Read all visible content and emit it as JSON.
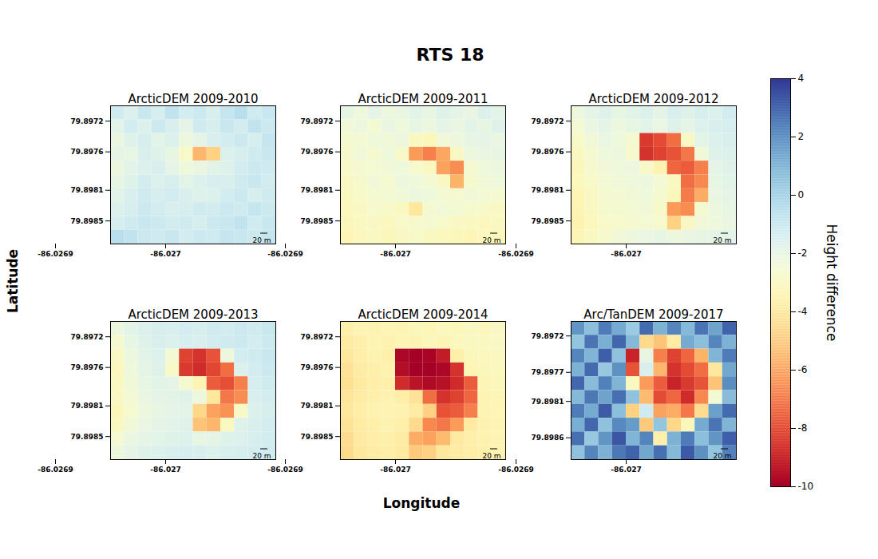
{
  "chart_data": {
    "type": "heatmap",
    "title": "RTS 18",
    "x_label": "Longitude",
    "y_label": "Latitude",
    "color": "RdYlBu",
    "colorbar": {
      "range": [
        -10,
        4
      ],
      "ticks": [
        4,
        2,
        0,
        -2,
        -4,
        -6,
        -8,
        -10
      ],
      "label": "Height difference"
    },
    "panels": [
      {
        "title": "ArcticDEM 2009-2010",
        "scale_bar": "20 m",
        "xlim": [
          -86.02695,
          -86.0271
        ],
        "xticks": [
          -86.0269,
          -86.027
        ],
        "ylim": [
          79.897,
          79.8988
        ],
        "yticks": [
          79.8972,
          79.8976,
          79.8981,
          79.8985
        ],
        "cells": [
          [
            -1.2,
            -1.6,
            -1.0,
            -1.4,
            -0.8,
            -1.3,
            -1.1,
            -1.5,
            -0.9,
            -0.6,
            -1.2,
            -1.0
          ],
          [
            -1.8,
            -1.3,
            -1.6,
            -1.1,
            -1.5,
            -1.9,
            -1.2,
            -1.4,
            -1.0,
            -1.3,
            -0.8,
            -1.1
          ],
          [
            -2.1,
            -1.7,
            -1.4,
            -1.8,
            -1.6,
            -2.2,
            -1.9,
            -1.5,
            -1.3,
            -1.1,
            -1.4,
            -0.9
          ],
          [
            -1.9,
            -2.0,
            -1.5,
            -1.7,
            -2.0,
            -2.8,
            -5.5,
            -4.8,
            -1.6,
            -1.4,
            -1.2,
            -1.0
          ],
          [
            -2.2,
            -1.8,
            -1.6,
            -1.5,
            -1.9,
            -2.3,
            -2.1,
            -1.8,
            -1.7,
            -1.3,
            -1.1,
            -1.2
          ],
          [
            -2.0,
            -1.7,
            -1.3,
            -1.6,
            -1.4,
            -1.8,
            -1.6,
            -1.4,
            -1.5,
            -1.2,
            -1.0,
            -1.3
          ],
          [
            -1.8,
            -1.5,
            -1.2,
            -1.4,
            -1.3,
            -1.5,
            -1.7,
            -1.6,
            -1.3,
            -1.1,
            -1.4,
            -1.2
          ],
          [
            -1.6,
            -1.4,
            -1.1,
            -1.3,
            -1.5,
            -1.4,
            -1.2,
            -1.3,
            -1.1,
            -1.2,
            -0.9,
            -1.1
          ],
          [
            -1.4,
            -1.2,
            -1.0,
            -1.1,
            -1.3,
            -1.2,
            -1.4,
            -1.1,
            -1.0,
            -0.8,
            -1.2,
            -1.0
          ],
          [
            -0.6,
            -0.8,
            -1.1,
            -1.2,
            -1.0,
            -1.3,
            -1.1,
            -1.2,
            -0.9,
            -1.0,
            -1.1,
            -0.9
          ]
        ]
      },
      {
        "title": "ArcticDEM 2009-2011",
        "scale_bar": "20 m",
        "xlim": [
          -86.02695,
          -86.0271
        ],
        "xticks": [
          -86.0269,
          -86.027
        ],
        "ylim": [
          79.897,
          79.8988
        ],
        "yticks": [
          79.8972,
          79.8976,
          79.8981,
          79.8985
        ],
        "cells": [
          [
            -2.0,
            -2.3,
            -1.9,
            -2.2,
            -2.1,
            -1.8,
            -2.0,
            -1.7,
            -1.9,
            -2.1,
            -1.6,
            -1.8
          ],
          [
            -2.4,
            -2.2,
            -2.5,
            -2.1,
            -2.3,
            -2.0,
            -2.2,
            -1.9,
            -2.1,
            -1.8,
            -2.0,
            -1.7
          ],
          [
            -2.6,
            -2.5,
            -2.3,
            -2.4,
            -2.2,
            -3.0,
            -3.2,
            -2.4,
            -2.2,
            -2.0,
            -1.9,
            -2.1
          ],
          [
            -2.7,
            -2.4,
            -2.6,
            -2.3,
            -2.8,
            -6.2,
            -6.8,
            -5.9,
            -2.9,
            -2.2,
            -2.1,
            -2.0
          ],
          [
            -2.8,
            -2.6,
            -2.5,
            -2.4,
            -2.3,
            -2.7,
            -3.0,
            -6.0,
            -6.5,
            -2.6,
            -2.3,
            -2.2
          ],
          [
            -2.9,
            -2.7,
            -2.4,
            -2.6,
            -2.2,
            -2.3,
            -2.5,
            -2.9,
            -5.6,
            -2.7,
            -2.4,
            -2.3
          ],
          [
            -3.0,
            -2.8,
            -2.6,
            -2.5,
            -2.4,
            -2.2,
            -2.3,
            -2.5,
            -2.6,
            -2.4,
            -2.5,
            -2.6
          ],
          [
            -3.1,
            -2.9,
            -2.7,
            -2.8,
            -3.0,
            -4.0,
            -2.6,
            -2.4,
            -2.5,
            -2.7,
            -2.8,
            -2.9
          ],
          [
            -3.2,
            -3.0,
            -2.9,
            -3.1,
            -2.8,
            -2.7,
            -2.6,
            -2.8,
            -2.9,
            -3.0,
            -3.1,
            -3.0
          ],
          [
            -3.3,
            -3.1,
            -3.0,
            -3.2,
            -2.9,
            -2.8,
            -3.0,
            -3.1,
            -3.2,
            -3.3,
            -3.1,
            -3.2
          ]
        ]
      },
      {
        "title": "ArcticDEM 2009-2012",
        "scale_bar": "20 m",
        "xlim": [
          -86.02695,
          -86.0271
        ],
        "xticks": [
          -86.0269,
          -86.027
        ],
        "ylim": [
          79.897,
          79.8988
        ],
        "yticks": [
          79.8972,
          79.8976,
          79.8981,
          79.8985
        ],
        "cells": [
          [
            -2.2,
            -1.9,
            -1.7,
            -2.0,
            -1.8,
            -1.6,
            -1.9,
            -1.5,
            -1.7,
            -1.4,
            -1.6,
            -1.3
          ],
          [
            -2.5,
            -2.1,
            -1.9,
            -2.2,
            -2.0,
            -1.8,
            -2.1,
            -1.7,
            -1.9,
            -1.6,
            -1.5,
            -1.4
          ],
          [
            -2.8,
            -2.4,
            -2.1,
            -2.3,
            -2.6,
            -8.4,
            -8.0,
            -7.2,
            -2.9,
            -1.8,
            -1.6,
            -1.5
          ],
          [
            -3.0,
            -2.6,
            -2.3,
            -2.2,
            -2.7,
            -8.6,
            -8.2,
            -7.8,
            -7.0,
            -2.4,
            -1.7,
            -1.6
          ],
          [
            -3.2,
            -2.7,
            -2.4,
            -2.3,
            -2.2,
            -2.8,
            -3.5,
            -7.4,
            -7.6,
            -6.8,
            -1.9,
            -1.7
          ],
          [
            -3.1,
            -2.8,
            -2.5,
            -2.4,
            -2.3,
            -2.2,
            -2.5,
            -3.0,
            -7.2,
            -6.6,
            -2.0,
            -1.8
          ],
          [
            -3.3,
            -2.9,
            -2.6,
            -2.5,
            -2.4,
            -2.3,
            -2.6,
            -3.2,
            -6.9,
            -5.8,
            -2.1,
            -1.9
          ],
          [
            -3.4,
            -3.0,
            -2.7,
            -2.6,
            -2.5,
            -2.4,
            -2.8,
            -6.2,
            -6.5,
            -2.6,
            -2.2,
            -2.0
          ],
          [
            -3.5,
            -3.1,
            -2.8,
            -2.7,
            -2.6,
            -2.5,
            -2.7,
            -4.8,
            -2.9,
            -2.4,
            -2.3,
            -2.1
          ],
          [
            -3.3,
            -3.0,
            -2.7,
            -2.4,
            -2.2,
            -2.1,
            -2.0,
            -2.2,
            -2.1,
            -2.0,
            -1.9,
            -1.8
          ]
        ]
      },
      {
        "title": "ArcticDEM 2009-2013",
        "scale_bar": "20 m",
        "xlim": [
          -86.02695,
          -86.0271
        ],
        "xticks": [
          -86.0269,
          -86.027
        ],
        "ylim": [
          79.897,
          79.8988
        ],
        "yticks": [
          79.8972,
          79.8976,
          79.8981,
          79.8985
        ],
        "cells": [
          [
            -2.2,
            -1.8,
            -1.6,
            -1.4,
            -1.5,
            -1.3,
            -1.4,
            -1.2,
            -1.3,
            -1.1,
            -1.2,
            -1.0
          ],
          [
            -2.6,
            -2.0,
            -1.7,
            -1.5,
            -1.6,
            -1.4,
            -1.5,
            -1.3,
            -1.2,
            -1.1,
            -1.3,
            -1.1
          ],
          [
            -2.9,
            -2.2,
            -1.8,
            -1.6,
            -2.5,
            -8.2,
            -8.6,
            -7.8,
            -2.2,
            -1.3,
            -1.2,
            -1.0
          ],
          [
            -3.1,
            -2.3,
            -1.9,
            -1.7,
            -2.8,
            -8.4,
            -8.8,
            -8.1,
            -7.2,
            -1.6,
            -1.3,
            -1.1
          ],
          [
            -3.0,
            -2.4,
            -2.0,
            -1.8,
            -1.9,
            -2.6,
            -3.4,
            -7.6,
            -7.9,
            -6.8,
            -1.4,
            -1.2
          ],
          [
            -2.9,
            -2.5,
            -2.1,
            -1.9,
            -1.8,
            -1.7,
            -2.2,
            -4.0,
            -7.0,
            -6.5,
            -1.5,
            -1.3
          ],
          [
            -3.2,
            -2.6,
            -2.2,
            -2.0,
            -1.9,
            -1.8,
            -4.6,
            -6.0,
            -6.4,
            -2.8,
            -1.6,
            -1.4
          ],
          [
            -3.0,
            -2.4,
            -2.1,
            -1.9,
            -1.8,
            -1.7,
            -5.2,
            -5.5,
            -3.0,
            -1.7,
            -1.5,
            -1.3
          ],
          [
            -2.6,
            -2.1,
            -1.9,
            -1.8,
            -1.7,
            -1.6,
            -2.0,
            -1.9,
            -1.7,
            -1.6,
            -1.4,
            -1.3
          ],
          [
            -2.2,
            -1.9,
            -1.7,
            -1.6,
            -1.5,
            -1.4,
            -1.5,
            -1.6,
            -1.5,
            -1.4,
            -1.3,
            -1.2
          ]
        ]
      },
      {
        "title": "ArcticDEM 2009-2014",
        "scale_bar": "20 m",
        "xlim": [
          -86.02695,
          -86.0271
        ],
        "xticks": [
          -86.0269,
          -86.027
        ],
        "ylim": [
          79.897,
          79.8988
        ],
        "yticks": [
          79.8972,
          79.8976,
          79.8981,
          79.8985
        ],
        "cells": [
          [
            -3.6,
            -3.4,
            -3.5,
            -3.3,
            -3.4,
            -3.2,
            -3.3,
            -3.1,
            -3.2,
            -3.0,
            -3.1,
            -2.9
          ],
          [
            -3.8,
            -3.6,
            -3.4,
            -3.5,
            -3.3,
            -3.4,
            -3.2,
            -3.3,
            -3.1,
            -3.0,
            -3.0,
            -2.9
          ],
          [
            -4.0,
            -3.7,
            -3.5,
            -3.6,
            -9.8,
            -10.0,
            -9.9,
            -9.2,
            -3.6,
            -3.2,
            -3.1,
            -3.0
          ],
          [
            -4.2,
            -3.8,
            -3.6,
            -3.5,
            -9.6,
            -10.0,
            -10.0,
            -9.8,
            -8.6,
            -3.3,
            -3.2,
            -3.1
          ],
          [
            -4.3,
            -3.9,
            -3.7,
            -3.6,
            -8.8,
            -9.4,
            -9.7,
            -9.5,
            -8.8,
            -7.6,
            -3.3,
            -3.2
          ],
          [
            -4.1,
            -3.8,
            -3.6,
            -3.5,
            -3.7,
            -4.2,
            -7.2,
            -8.6,
            -8.2,
            -7.4,
            -3.4,
            -3.3
          ],
          [
            -4.0,
            -3.7,
            -3.5,
            -3.4,
            -3.5,
            -3.8,
            -4.8,
            -7.8,
            -7.6,
            -6.8,
            -3.4,
            -3.3
          ],
          [
            -4.2,
            -3.8,
            -3.6,
            -3.5,
            -3.6,
            -4.5,
            -6.6,
            -7.0,
            -6.2,
            -3.9,
            -3.5,
            -3.4
          ],
          [
            -4.4,
            -3.9,
            -3.7,
            -3.6,
            -3.8,
            -5.8,
            -6.0,
            -5.4,
            -3.9,
            -3.6,
            -3.5,
            -3.4
          ],
          [
            -4.5,
            -4.0,
            -3.8,
            -3.7,
            -3.9,
            -5.0,
            -4.8,
            -4.0,
            -3.8,
            -3.7,
            -3.6,
            -3.5
          ]
        ]
      },
      {
        "title": "Arc/TanDEM 2009-2017",
        "scale_bar": "20 m",
        "xlim": [
          -86.02695,
          -86.0271
        ],
        "xticks": [
          -86.0269,
          -86.027
        ],
        "ylim": [
          79.897,
          79.8989
        ],
        "yticks": [
          79.8972,
          79.8977,
          79.8981,
          79.8986
        ],
        "cells": [
          [
            1.8,
            0.6,
            2.4,
            1.2,
            0.2,
            2.8,
            1.0,
            2.2,
            0.8,
            2.6,
            1.4,
            3.0
          ],
          [
            0.4,
            2.6,
            1.1,
            2.9,
            0.8,
            -4.5,
            -5.2,
            -3.8,
            1.2,
            0.6,
            2.2,
            1.0
          ],
          [
            2.2,
            0.9,
            3.1,
            0.5,
            -9.0,
            -2.0,
            -6.8,
            -8.2,
            -7.4,
            -5.6,
            0.9,
            2.4
          ],
          [
            1.0,
            2.8,
            0.3,
            1.9,
            -7.8,
            -1.5,
            -5.5,
            -8.6,
            -8.0,
            -7.2,
            -4.0,
            1.3
          ],
          [
            2.9,
            0.7,
            2.3,
            0.9,
            -3.0,
            -6.2,
            -7.6,
            -9.0,
            -8.4,
            -7.8,
            -5.2,
            2.0
          ],
          [
            0.8,
            2.5,
            1.4,
            2.7,
            0.5,
            -5.4,
            -8.0,
            -7.4,
            -8.8,
            -6.6,
            -2.5,
            0.7
          ],
          [
            2.4,
            1.2,
            3.2,
            0.6,
            -4.8,
            -1.2,
            -6.0,
            -5.8,
            -7.0,
            -4.4,
            1.5,
            2.8
          ],
          [
            1.1,
            2.9,
            0.5,
            2.1,
            1.6,
            -5.0,
            0.4,
            -4.6,
            -3.2,
            1.2,
            2.6,
            0.9
          ],
          [
            2.7,
            0.3,
            1.8,
            3.3,
            0.9,
            2.2,
            -3.6,
            1.0,
            2.4,
            0.6,
            1.8,
            3.1
          ],
          [
            0.5,
            2.2,
            1.0,
            2.5,
            3.0,
            1.3,
            2.7,
            0.8,
            3.2,
            1.9,
            0.4,
            2.3
          ]
        ]
      }
    ]
  }
}
